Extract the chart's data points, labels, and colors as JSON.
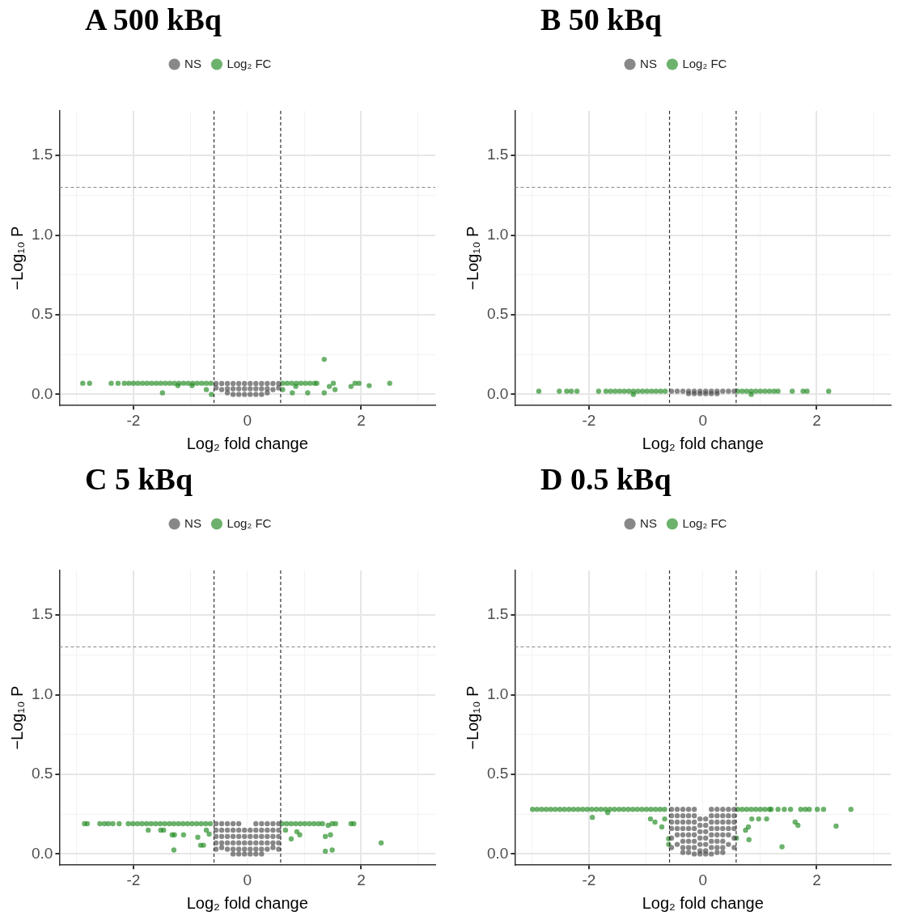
{
  "chart_data": [
    {
      "type": "scatter",
      "title": "A 500 kBq",
      "xlabel": "Log₂ fold change",
      "ylabel": "−Log₁₀ P",
      "legend": "top",
      "grid": true,
      "marker": "circle",
      "xlim": [
        -3.3,
        3.3
      ],
      "ylim": [
        -0.07,
        1.78
      ],
      "xticks": [
        {
          "value": -3,
          "label": null
        },
        -2,
        {
          "value": -1,
          "label": null
        },
        0,
        {
          "value": 1,
          "label": null
        },
        2,
        {
          "value": 3,
          "label": null
        }
      ],
      "yticks": [
        {
          "value": 0,
          "label": "0.0"
        },
        {
          "value": 0.25,
          "label": null
        },
        {
          "value": 0.5,
          "label": "0.5"
        },
        {
          "value": 0.75,
          "label": null
        },
        {
          "value": 1,
          "label": "1.0"
        },
        {
          "value": 1.25,
          "label": null
        },
        {
          "value": 1.5,
          "label": "1.5"
        }
      ],
      "ref_lines": [
        {
          "axis": "x",
          "value": -0.585,
          "color": "#333333",
          "line_style": "dashed"
        },
        {
          "axis": "x",
          "value": 0.585,
          "color": "#333333",
          "line_style": "dashed"
        },
        {
          "axis": "y",
          "value": 1.3,
          "color": "#888888",
          "line_style": "dashed"
        }
      ],
      "series": [
        {
          "name": "NS",
          "color": "#4d4d4d",
          "x": [
            -0.55,
            -0.55,
            -0.45,
            -0.45,
            -0.35,
            -0.35,
            -0.35,
            -0.25,
            -0.25,
            -0.25,
            -0.15,
            -0.15,
            -0.15,
            -0.05,
            -0.05,
            -0.05,
            0.05,
            0.05,
            0.05,
            0.15,
            0.15,
            0.15,
            0.25,
            0.25,
            0.25,
            0.35,
            0.35,
            0.35,
            0.45,
            0.45,
            0.55,
            0.55
          ],
          "values": [
            0.068,
            0.04,
            0.068,
            0.03,
            0.068,
            0.035,
            0.01,
            0.068,
            0.035,
            0.0,
            0.068,
            0.035,
            0.0,
            0.068,
            0.035,
            0.0,
            0.068,
            0.035,
            0.0,
            0.068,
            0.035,
            0.0,
            0.068,
            0.035,
            0.0,
            0.068,
            0.035,
            0.01,
            0.068,
            0.03,
            0.068,
            0.04
          ]
        },
        {
          "name": "Log₂ FC",
          "color": "#228b22",
          "x": [
            -2.89,
            -2.77,
            -2.39,
            -2.27,
            -2.16,
            -2.08,
            -2.0,
            -1.92,
            -1.84,
            -1.76,
            -1.68,
            -1.6,
            -1.52,
            -1.44,
            -1.36,
            -1.28,
            -1.2,
            -1.12,
            -1.04,
            -0.96,
            -0.88,
            -0.8,
            -0.72,
            -0.64,
            0.62,
            0.7,
            0.78,
            0.86,
            0.94,
            1.02,
            1.1,
            1.18,
            1.22,
            1.51,
            1.89,
            1.96,
            2.5,
            -1.49,
            -1.22,
            -0.97,
            -0.72,
            -0.63,
            1.35,
            1.35,
            1.44,
            1.54,
            0.62,
            0.79,
            0.85,
            1.06,
            1.82,
            2.14
          ],
          "values": [
            0.07,
            0.07,
            0.07,
            0.07,
            0.07,
            0.07,
            0.07,
            0.07,
            0.07,
            0.07,
            0.07,
            0.07,
            0.07,
            0.07,
            0.07,
            0.07,
            0.07,
            0.07,
            0.07,
            0.07,
            0.07,
            0.07,
            0.07,
            0.07,
            0.07,
            0.07,
            0.07,
            0.07,
            0.07,
            0.07,
            0.07,
            0.07,
            0.07,
            0.07,
            0.07,
            0.07,
            0.07,
            0.01,
            0.055,
            0.055,
            0.03,
            0.0,
            0.22,
            0.01,
            0.05,
            0.03,
            0.03,
            0.01,
            0.05,
            0.01,
            0.05,
            0.055
          ]
        }
      ]
    },
    {
      "type": "scatter",
      "title": "B 50 kBq",
      "xlabel": "Log₂ fold change",
      "ylabel": "−Log₁₀ P",
      "legend": "top",
      "grid": true,
      "marker": "circle",
      "xlim": [
        -3.3,
        3.3
      ],
      "ylim": [
        -0.07,
        1.78
      ],
      "xticks": [
        {
          "value": -3,
          "label": null
        },
        -2,
        {
          "value": -1,
          "label": null
        },
        0,
        {
          "value": 1,
          "label": null
        },
        2,
        {
          "value": 3,
          "label": null
        }
      ],
      "yticks": [
        {
          "value": 0,
          "label": "0.0"
        },
        {
          "value": 0.25,
          "label": null
        },
        {
          "value": 0.5,
          "label": "0.5"
        },
        {
          "value": 0.75,
          "label": null
        },
        {
          "value": 1,
          "label": "1.0"
        },
        {
          "value": 1.25,
          "label": null
        },
        {
          "value": 1.5,
          "label": "1.5"
        }
      ],
      "ref_lines": [
        {
          "axis": "x",
          "value": -0.585,
          "color": "#333333",
          "line_style": "dashed"
        },
        {
          "axis": "x",
          "value": 0.585,
          "color": "#333333",
          "line_style": "dashed"
        },
        {
          "axis": "y",
          "value": 1.3,
          "color": "#888888",
          "line_style": "dashed"
        }
      ],
      "series": [
        {
          "name": "NS",
          "color": "#4d4d4d",
          "x": [
            -0.55,
            -0.45,
            -0.35,
            -0.25,
            -0.25,
            -0.15,
            -0.15,
            -0.05,
            -0.05,
            0.05,
            0.05,
            0.15,
            0.15,
            0.25,
            0.25,
            0.35,
            0.45,
            0.55
          ],
          "values": [
            0.02,
            0.02,
            0.02,
            0.02,
            0.005,
            0.02,
            0.005,
            0.02,
            0.005,
            0.02,
            0.005,
            0.02,
            0.005,
            0.02,
            0.005,
            0.02,
            0.02,
            0.02
          ]
        },
        {
          "name": "Log₂ FC",
          "color": "#228b22",
          "x": [
            -2.88,
            -2.52,
            -2.39,
            -2.31,
            -2.21,
            -1.83,
            -1.7,
            -1.62,
            -1.54,
            -1.46,
            -1.38,
            -1.3,
            -1.22,
            -1.14,
            -1.06,
            -0.98,
            -0.9,
            -0.82,
            -0.74,
            -0.66,
            -1.22,
            0.61,
            0.69,
            0.77,
            0.85,
            0.93,
            1.01,
            1.09,
            1.17,
            1.25,
            1.32,
            1.57,
            1.76,
            1.83,
            2.21,
            0.85
          ],
          "values": [
            0.02,
            0.02,
            0.02,
            0.02,
            0.02,
            0.02,
            0.02,
            0.02,
            0.02,
            0.02,
            0.02,
            0.02,
            0.02,
            0.02,
            0.02,
            0.02,
            0.02,
            0.02,
            0.02,
            0.02,
            0.0,
            0.02,
            0.02,
            0.02,
            0.02,
            0.02,
            0.02,
            0.02,
            0.02,
            0.02,
            0.02,
            0.02,
            0.02,
            0.02,
            0.02,
            0.0
          ]
        }
      ]
    },
    {
      "type": "scatter",
      "title": "C 5 kBq",
      "xlabel": "Log₂ fold change",
      "ylabel": "−Log₁₀ P",
      "legend": "top",
      "grid": true,
      "marker": "circle",
      "xlim": [
        -3.3,
        3.3
      ],
      "ylim": [
        -0.07,
        1.78
      ],
      "xticks": [
        {
          "value": -3,
          "label": null
        },
        -2,
        {
          "value": -1,
          "label": null
        },
        0,
        {
          "value": 1,
          "label": null
        },
        2,
        {
          "value": 3,
          "label": null
        }
      ],
      "yticks": [
        {
          "value": 0,
          "label": "0.0"
        },
        {
          "value": 0.25,
          "label": null
        },
        {
          "value": 0.5,
          "label": "0.5"
        },
        {
          "value": 0.75,
          "label": null
        },
        {
          "value": 1,
          "label": "1.0"
        },
        {
          "value": 1.25,
          "label": null
        },
        {
          "value": 1.5,
          "label": "1.5"
        }
      ],
      "ref_lines": [
        {
          "axis": "x",
          "value": -0.585,
          "color": "#333333",
          "line_style": "dashed"
        },
        {
          "axis": "x",
          "value": 0.585,
          "color": "#333333",
          "line_style": "dashed"
        },
        {
          "axis": "y",
          "value": 1.3,
          "color": "#888888",
          "line_style": "dashed"
        }
      ],
      "series": [
        {
          "name": "NS",
          "color": "#4d4d4d",
          "x": [
            -0.55,
            -0.55,
            -0.55,
            -0.55,
            -0.55,
            -0.45,
            -0.45,
            -0.45,
            -0.45,
            -0.45,
            -0.35,
            -0.35,
            -0.35,
            -0.35,
            -0.35,
            -0.25,
            -0.25,
            -0.25,
            -0.25,
            -0.25,
            -0.25,
            -0.15,
            -0.15,
            -0.15,
            -0.15,
            -0.15,
            -0.15,
            -0.05,
            -0.05,
            -0.05,
            -0.05,
            -0.05,
            0.05,
            0.05,
            0.05,
            0.05,
            0.05,
            0.15,
            0.15,
            0.15,
            0.15,
            0.15,
            0.15,
            0.25,
            0.25,
            0.25,
            0.25,
            0.25,
            0.25,
            0.35,
            0.35,
            0.35,
            0.35,
            0.35,
            0.45,
            0.45,
            0.45,
            0.45,
            0.45,
            0.55,
            0.55,
            0.55,
            0.55,
            0.55
          ],
          "values": [
            0.19,
            0.15,
            0.11,
            0.07,
            0.03,
            0.19,
            0.15,
            0.11,
            0.07,
            0.04,
            0.19,
            0.15,
            0.11,
            0.07,
            0.03,
            0.19,
            0.15,
            0.11,
            0.07,
            0.03,
            0.0,
            0.19,
            0.15,
            0.11,
            0.07,
            0.03,
            0.0,
            0.15,
            0.11,
            0.07,
            0.03,
            0.0,
            0.15,
            0.11,
            0.07,
            0.03,
            0.0,
            0.19,
            0.15,
            0.11,
            0.07,
            0.03,
            0.0,
            0.19,
            0.15,
            0.11,
            0.07,
            0.03,
            0.0,
            0.19,
            0.15,
            0.11,
            0.07,
            0.03,
            0.19,
            0.15,
            0.11,
            0.07,
            0.04,
            0.19,
            0.15,
            0.11,
            0.07,
            0.03
          ]
        },
        {
          "name": "Log₂ FC",
          "color": "#228b22",
          "x": [
            -2.86,
            -2.81,
            -2.59,
            -2.51,
            -2.44,
            -2.36,
            -2.25,
            -2.09,
            -2.01,
            -1.93,
            -1.85,
            -1.77,
            -1.69,
            -1.61,
            -1.53,
            -1.45,
            -1.37,
            -1.29,
            -1.21,
            -1.13,
            -1.05,
            -0.97,
            -0.89,
            -0.81,
            -0.73,
            -0.65,
            -1.74,
            -1.52,
            -1.47,
            -1.32,
            -1.28,
            -1.12,
            -1.29,
            -0.87,
            -0.82,
            -0.77,
            -0.67,
            -0.72,
            0.61,
            0.69,
            0.77,
            0.85,
            0.93,
            1.01,
            1.09,
            1.17,
            1.25,
            1.32,
            1.42,
            1.49,
            1.55,
            1.82,
            1.87,
            0.67,
            0.77,
            0.87,
            0.92,
            1.37,
            1.46,
            1.37,
            1.49,
            2.35
          ],
          "values": [
            0.19,
            0.19,
            0.19,
            0.19,
            0.19,
            0.19,
            0.19,
            0.19,
            0.19,
            0.19,
            0.19,
            0.19,
            0.19,
            0.19,
            0.19,
            0.19,
            0.19,
            0.19,
            0.19,
            0.19,
            0.19,
            0.19,
            0.19,
            0.19,
            0.19,
            0.19,
            0.15,
            0.15,
            0.15,
            0.12,
            0.12,
            0.12,
            0.025,
            0.105,
            0.055,
            0.055,
            0.125,
            0.15,
            0.19,
            0.19,
            0.19,
            0.19,
            0.19,
            0.19,
            0.19,
            0.19,
            0.19,
            0.19,
            0.18,
            0.19,
            0.19,
            0.19,
            0.19,
            0.15,
            0.095,
            0.14,
            0.12,
            0.11,
            0.12,
            0.017,
            0.025,
            0.07
          ]
        }
      ]
    },
    {
      "type": "scatter",
      "title": "D 0.5 kBq",
      "xlabel": "Log₂ fold change",
      "ylabel": "−Log₁₀ P",
      "legend": "top",
      "grid": true,
      "marker": "circle",
      "xlim": [
        -3.3,
        3.3
      ],
      "ylim": [
        -0.07,
        1.78
      ],
      "xticks": [
        {
          "value": -3,
          "label": null
        },
        -2,
        {
          "value": -1,
          "label": null
        },
        0,
        {
          "value": 1,
          "label": null
        },
        2,
        {
          "value": 3,
          "label": null
        }
      ],
      "yticks": [
        {
          "value": 0,
          "label": "0.0"
        },
        {
          "value": 0.25,
          "label": null
        },
        {
          "value": 0.5,
          "label": "0.5"
        },
        {
          "value": 0.75,
          "label": null
        },
        {
          "value": 1,
          "label": "1.0"
        },
        {
          "value": 1.25,
          "label": null
        },
        {
          "value": 1.5,
          "label": "1.5"
        }
      ],
      "ref_lines": [
        {
          "axis": "x",
          "value": -0.585,
          "color": "#333333",
          "line_style": "dashed"
        },
        {
          "axis": "x",
          "value": 0.585,
          "color": "#333333",
          "line_style": "dashed"
        },
        {
          "axis": "y",
          "value": 1.3,
          "color": "#888888",
          "line_style": "dashed"
        }
      ],
      "series": [
        {
          "name": "NS",
          "color": "#4d4d4d",
          "x": [
            -0.55,
            -0.55,
            -0.55,
            -0.55,
            -0.55,
            -0.55,
            -0.45,
            -0.45,
            -0.45,
            -0.45,
            -0.45,
            -0.45,
            -0.35,
            -0.35,
            -0.35,
            -0.35,
            -0.35,
            -0.35,
            -0.35,
            -0.35,
            -0.25,
            -0.25,
            -0.25,
            -0.25,
            -0.25,
            -0.25,
            -0.25,
            -0.25,
            -0.15,
            -0.15,
            -0.15,
            -0.15,
            -0.15,
            -0.15,
            -0.15,
            -0.15,
            -0.05,
            -0.05,
            -0.05,
            -0.05,
            -0.05,
            -0.05,
            -0.05,
            0.05,
            0.05,
            0.05,
            0.05,
            0.05,
            0.05,
            0.05,
            0.15,
            0.15,
            0.15,
            0.15,
            0.15,
            0.15,
            0.15,
            0.15,
            0.25,
            0.25,
            0.25,
            0.25,
            0.25,
            0.25,
            0.25,
            0.25,
            0.35,
            0.35,
            0.35,
            0.35,
            0.35,
            0.35,
            0.35,
            0.35,
            0.45,
            0.45,
            0.45,
            0.45,
            0.45,
            0.45,
            0.55,
            0.55,
            0.55,
            0.55,
            0.55,
            0.55
          ],
          "values": [
            0.28,
            0.24,
            0.2,
            0.16,
            0.1,
            0.04,
            0.28,
            0.24,
            0.2,
            0.16,
            0.12,
            0.06,
            0.28,
            0.24,
            0.2,
            0.16,
            0.12,
            0.08,
            0.04,
            0.01,
            0.28,
            0.24,
            0.2,
            0.16,
            0.12,
            0.08,
            0.04,
            0.01,
            0.28,
            0.24,
            0.2,
            0.16,
            0.12,
            0.08,
            0.04,
            0.0,
            0.22,
            0.18,
            0.14,
            0.1,
            0.06,
            0.02,
            0.0,
            0.22,
            0.18,
            0.14,
            0.1,
            0.06,
            0.02,
            0.0,
            0.28,
            0.24,
            0.2,
            0.16,
            0.12,
            0.08,
            0.04,
            0.0,
            0.28,
            0.24,
            0.2,
            0.16,
            0.12,
            0.08,
            0.04,
            0.01,
            0.28,
            0.24,
            0.2,
            0.16,
            0.12,
            0.08,
            0.04,
            0.01,
            0.28,
            0.24,
            0.2,
            0.16,
            0.12,
            0.06,
            0.28,
            0.24,
            0.2,
            0.16,
            0.1,
            0.04
          ]
        },
        {
          "name": "Log₂ FC",
          "color": "#228b22",
          "x": [
            -2.99,
            -2.91,
            -2.83,
            -2.75,
            -2.67,
            -2.59,
            -2.51,
            -2.43,
            -2.35,
            -2.27,
            -2.19,
            -2.11,
            -2.03,
            -1.95,
            -1.87,
            -1.79,
            -1.71,
            -1.63,
            -1.55,
            -1.47,
            -1.39,
            -1.31,
            -1.23,
            -1.15,
            -1.07,
            -0.99,
            -0.91,
            -0.83,
            -0.75,
            -0.67,
            -1.94,
            -1.67,
            -0.92,
            -0.84,
            -0.72,
            -0.67,
            -0.6,
            -0.6,
            0.61,
            0.69,
            0.77,
            0.85,
            0.93,
            1.01,
            1.09,
            1.17,
            1.2,
            1.32,
            1.43,
            1.54,
            1.72,
            1.8,
            1.87,
            2.01,
            2.12,
            2.6,
            0.86,
            0.98,
            1.12,
            0.8,
            0.75,
            0.81,
            1.62,
            1.67,
            2.34,
            1.39,
            0.59
          ],
          "values": [
            0.28,
            0.28,
            0.28,
            0.28,
            0.28,
            0.28,
            0.28,
            0.28,
            0.28,
            0.28,
            0.28,
            0.28,
            0.28,
            0.28,
            0.28,
            0.28,
            0.28,
            0.28,
            0.28,
            0.28,
            0.28,
            0.28,
            0.28,
            0.28,
            0.28,
            0.28,
            0.28,
            0.28,
            0.28,
            0.28,
            0.23,
            0.26,
            0.22,
            0.2,
            0.17,
            0.22,
            0.096,
            0.06,
            0.28,
            0.28,
            0.28,
            0.28,
            0.28,
            0.28,
            0.28,
            0.28,
            0.28,
            0.28,
            0.28,
            0.28,
            0.28,
            0.28,
            0.28,
            0.28,
            0.28,
            0.28,
            0.22,
            0.22,
            0.22,
            0.17,
            0.15,
            0.09,
            0.2,
            0.18,
            0.175,
            0.045,
            0.1
          ]
        }
      ]
    }
  ]
}
